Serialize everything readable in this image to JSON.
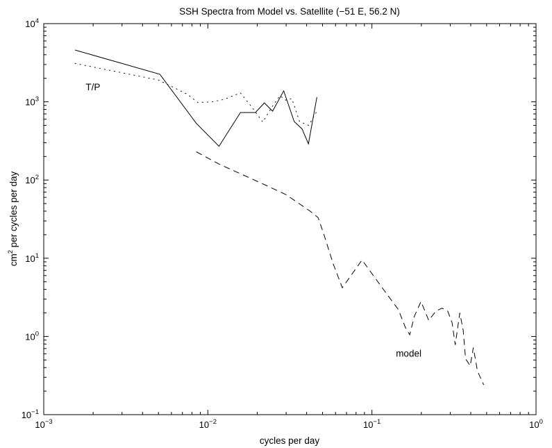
{
  "chart_data": {
    "type": "line",
    "title": "SSH Spectra from Model vs. Satellite (−51 E, 56.2 N)",
    "xlabel": "cycles per day",
    "ylabel_base": "cm",
    "ylabel_exp": "2",
    "ylabel_rest": " per cycles per day",
    "xscale": "log",
    "yscale": "log",
    "xlim": [
      0.001,
      1
    ],
    "ylim": [
      0.1,
      10000
    ],
    "grid": false,
    "legend": "none",
    "x_ticks": [
      {
        "base": "10",
        "exp": "−3",
        "value": 0.001
      },
      {
        "base": "10",
        "exp": "−2",
        "value": 0.01
      },
      {
        "base": "10",
        "exp": "−1",
        "value": 0.1
      },
      {
        "base": "10",
        "exp": "0",
        "value": 1
      }
    ],
    "y_ticks": [
      {
        "base": "10",
        "exp": "−1",
        "value": 0.1
      },
      {
        "base": "10",
        "exp": "0",
        "value": 1
      },
      {
        "base": "10",
        "exp": "1",
        "value": 10
      },
      {
        "base": "10",
        "exp": "2",
        "value": 100
      },
      {
        "base": "10",
        "exp": "3",
        "value": 1000
      },
      {
        "base": "10",
        "exp": "4",
        "value": 10000
      }
    ],
    "annotations": [
      {
        "text": "T/P",
        "x": 0.0018,
        "y": 1400
      },
      {
        "text": "model",
        "x": 0.14,
        "y": 0.55
      }
    ],
    "series": [
      {
        "style": "solid",
        "x": [
          0.00155,
          0.0051,
          0.0085,
          0.0117,
          0.0158,
          0.0195,
          0.0221,
          0.0248,
          0.029,
          0.0336,
          0.0375,
          0.041,
          0.0462
        ],
        "y": [
          4600,
          2250,
          530,
          270,
          730,
          730,
          970,
          760,
          1380,
          560,
          450,
          290,
          1150
        ]
      },
      {
        "style": "dotted",
        "x": [
          0.00155,
          0.005,
          0.0075,
          0.0087,
          0.0106,
          0.0125,
          0.0158,
          0.0186,
          0.0216,
          0.0245,
          0.0275,
          0.0298,
          0.0325,
          0.0362,
          0.0412,
          0.046
        ],
        "y": [
          3100,
          1900,
          1250,
          980,
          1000,
          1070,
          1300,
          850,
          550,
          850,
          1200,
          1050,
          1100,
          560,
          500,
          750
        ]
      },
      {
        "style": "dashed",
        "x": [
          0.0085,
          0.0117,
          0.0215,
          0.03,
          0.042,
          0.047,
          0.051,
          0.058,
          0.066,
          0.087,
          0.123,
          0.145,
          0.16,
          0.17,
          0.181,
          0.199,
          0.222,
          0.245,
          0.267,
          0.29,
          0.308,
          0.322,
          0.343,
          0.36,
          0.372,
          0.397,
          0.415,
          0.44,
          0.48
        ],
        "y": [
          230,
          160,
          90,
          65,
          40,
          33,
          20,
          8.5,
          4.2,
          9.5,
          3.5,
          2.2,
          1.3,
          1.05,
          1.8,
          2.8,
          1.6,
          2.1,
          2.3,
          2.1,
          1.5,
          0.78,
          2.0,
          1.2,
          0.52,
          0.42,
          0.72,
          0.36,
          0.24
        ]
      }
    ]
  }
}
